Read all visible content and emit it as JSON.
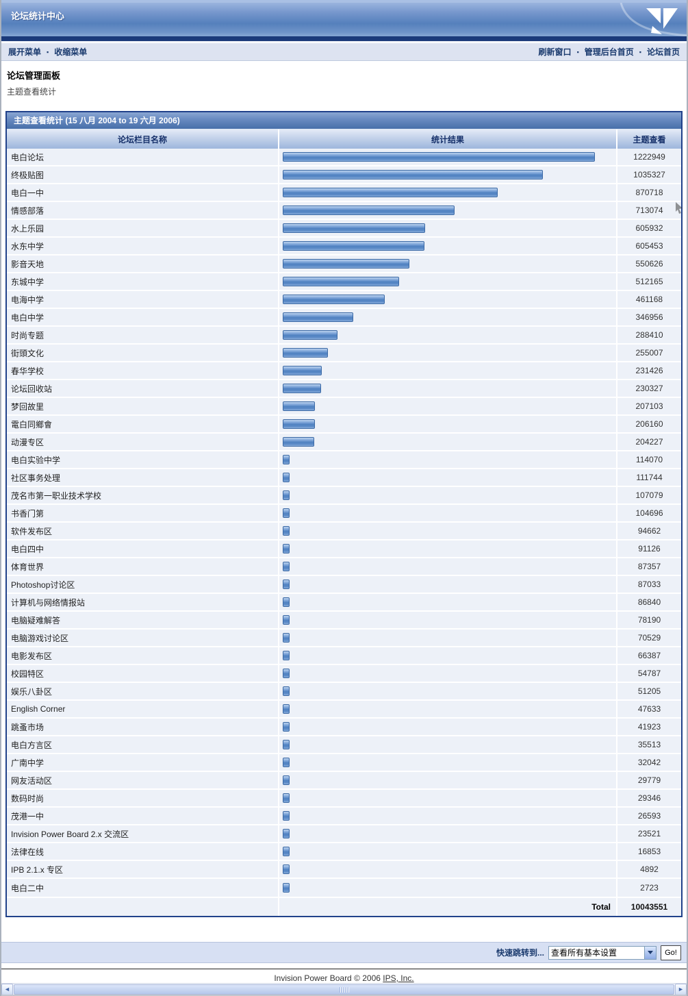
{
  "header": {
    "title": "论坛统计中心"
  },
  "menubar": {
    "separator": "▪",
    "left": [
      {
        "label": "展开菜单"
      },
      {
        "label": "收缩菜单"
      }
    ],
    "right": [
      {
        "label": "刷新窗口"
      },
      {
        "label": "管理后台首页"
      },
      {
        "label": "论坛首页"
      }
    ]
  },
  "breadcrumb": {
    "title": "论坛管理面板",
    "subtitle": "主题查看统计"
  },
  "table": {
    "title": "主题查看统计 (15 八月 2004 to 19 六月 2006)",
    "columns": {
      "name": "论坛栏目名称",
      "stats": "统计结果",
      "views": "主题查看"
    },
    "total_label": "Total",
    "total_value": "10043551",
    "rows": [
      {
        "name": "电白论坛",
        "views": 1222949
      },
      {
        "name": "终极贴图",
        "views": 1035327
      },
      {
        "name": "电白一中",
        "views": 870718
      },
      {
        "name": "情感部落",
        "views": 713074
      },
      {
        "name": "水上乐园",
        "views": 605932
      },
      {
        "name": "水东中学",
        "views": 605453
      },
      {
        "name": "影音天地",
        "views": 550626
      },
      {
        "name": "东城中学",
        "views": 512165
      },
      {
        "name": "电海中学",
        "views": 461168
      },
      {
        "name": "电白中学",
        "views": 346956
      },
      {
        "name": "时尚专题",
        "views": 288410
      },
      {
        "name": "街頭文化",
        "views": 255007
      },
      {
        "name": "春华学校",
        "views": 231426
      },
      {
        "name": "论坛回收站",
        "views": 230327
      },
      {
        "name": "梦回故里",
        "views": 207103
      },
      {
        "name": "電白同鄉會",
        "views": 206160
      },
      {
        "name": "动漫专区",
        "views": 204227
      },
      {
        "name": "电白实验中学",
        "views": 114070
      },
      {
        "name": "社区事务处理",
        "views": 111744
      },
      {
        "name": "茂名市第一职业技术学校",
        "views": 107079
      },
      {
        "name": "书香门第",
        "views": 104696
      },
      {
        "name": "软件发布区",
        "views": 94662
      },
      {
        "name": "电白四中",
        "views": 91126
      },
      {
        "name": "体育世界",
        "views": 87357
      },
      {
        "name": "Photoshop讨论区",
        "views": 87033
      },
      {
        "name": "计算机与网络情报站",
        "views": 86840
      },
      {
        "name": "电脑疑难解答",
        "views": 78190
      },
      {
        "name": "电脑游戏讨论区",
        "views": 70529
      },
      {
        "name": "电影发布区",
        "views": 66387
      },
      {
        "name": "校园特区",
        "views": 54787
      },
      {
        "name": "娱乐八卦区",
        "views": 51205
      },
      {
        "name": "English Corner",
        "views": 47633
      },
      {
        "name": "跳蚤市场",
        "views": 41923
      },
      {
        "name": "电白方言区",
        "views": 35513
      },
      {
        "name": "广南中学",
        "views": 32042
      },
      {
        "name": "网友活动区",
        "views": 29779
      },
      {
        "name": "数码时尚",
        "views": 29346
      },
      {
        "name": "茂港一中",
        "views": 26593
      },
      {
        "name": "Invision Power Board 2.x 交流区",
        "views": 23521
      },
      {
        "name": "法律在线",
        "views": 16853
      },
      {
        "name": "IPB 2.1.x 专区",
        "views": 4892
      },
      {
        "name": "电白二中",
        "views": 2723
      }
    ]
  },
  "quickjump": {
    "label": "快速跳转到...",
    "selected_option": "查看所有基本设置",
    "go_label": "Go!"
  },
  "footer": {
    "text": "Invision Power Board © 2006 ",
    "link_label": "IPS, Inc."
  },
  "colors": {
    "accent_navy": "#1b3a7a",
    "table_border": "#20418a",
    "bar_border": "#3b69a5",
    "bar_fill": "#4f81c1",
    "menubar_bg": "#dde3f1",
    "quickjump_bg": "#d7e0f3"
  }
}
